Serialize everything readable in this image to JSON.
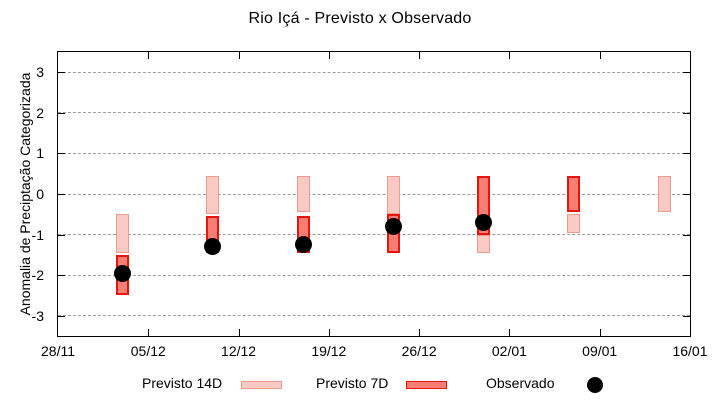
{
  "chart_data": {
    "type": "range-bar+scatter",
    "title": "Rio Içá - Previsto x Observado",
    "ylabel": "Anomalia de Preciptação Categorizada",
    "xlabel": "",
    "ylim": [
      -3.5,
      3.5
    ],
    "y_ticks": [
      3,
      2,
      1,
      0,
      -1,
      -2,
      -3
    ],
    "x_axis": {
      "start_label": "28/11",
      "end_label": "16/01",
      "span_days": 49,
      "tick_days": [
        0,
        7,
        14,
        21,
        28,
        35,
        42,
        49
      ],
      "tick_labels": [
        "28/11",
        "05/12",
        "12/12",
        "19/12",
        "26/12",
        "02/01",
        "09/01",
        "16/01"
      ]
    },
    "grid": "horizontal-dashed",
    "legend_position": "bottom",
    "legend": [
      {
        "label": "Previsto 14D",
        "swatch": "light-pink-box"
      },
      {
        "label": "Previsto 7D",
        "swatch": "red-box"
      },
      {
        "label": "Observado",
        "swatch": "black-dot"
      }
    ],
    "series_notes": "p14/p7 are [top,bottom] category ranges in anomaly units; obs is observed value (null = not yet observed)",
    "groups": [
      {
        "date": "03/12",
        "day": 5,
        "p14": [
          -0.5,
          -1.45
        ],
        "p7": [
          -1.5,
          -2.5
        ],
        "obs": -1.95
      },
      {
        "date": "10/12",
        "day": 12,
        "p14": [
          0.45,
          -0.5
        ],
        "p7": [
          -0.55,
          -1.45
        ],
        "obs": -1.3
      },
      {
        "date": "17/12",
        "day": 19,
        "p14": [
          0.45,
          -0.45
        ],
        "p7": [
          -0.55,
          -1.45
        ],
        "obs": -1.25
      },
      {
        "date": "24/12",
        "day": 26,
        "p14": [
          0.45,
          -0.5
        ],
        "p7": [
          -0.5,
          -1.45
        ],
        "obs": -0.8
      },
      {
        "date": "31/12",
        "day": 33,
        "p14": [
          -1.0,
          -1.45
        ],
        "p7": [
          0.45,
          -1.0
        ],
        "obs": -0.7
      },
      {
        "date": "07/01",
        "day": 40,
        "p14": [
          -0.5,
          -0.95
        ],
        "p7": [
          0.45,
          -0.45
        ],
        "obs": null
      },
      {
        "date": "14/01",
        "day": 47,
        "p14": [
          0.45,
          -0.45
        ],
        "p7": null,
        "obs": null
      }
    ],
    "colors": {
      "p14_fill": "#f8cac3",
      "p14_border": "#ef9a8f",
      "p7_fill": "#f87d72",
      "p7_border": "#e9140c",
      "observed": "#000000",
      "grid": "#9e9e9e",
      "axis": "#000000",
      "background": "#ffffff"
    }
  }
}
